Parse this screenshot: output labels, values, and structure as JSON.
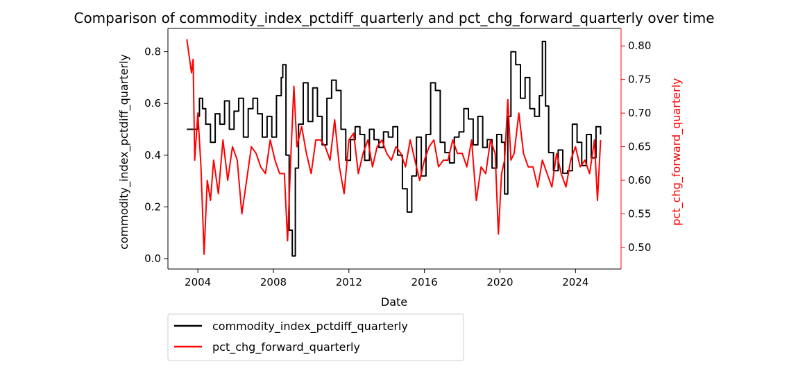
{
  "chart_data": {
    "type": "line",
    "title": "Comparison of commodity_index_pctdiff_quarterly and pct_chg_forward_quarterly over time",
    "xlabel": "Date",
    "ylabel_left": "commodity_index_pctdiff_quarterly",
    "ylabel_right": "pct_chg_forward_quarterly",
    "x_ticks": [
      "2004",
      "2008",
      "2012",
      "2016",
      "2020",
      "2024"
    ],
    "xlim": [
      "2002-06-01",
      "2026-06-01"
    ],
    "ylim_left": [
      -0.04,
      0.89
    ],
    "ylim_right": [
      0.468,
      0.826
    ],
    "yticks_left": [
      "0.0",
      "0.2",
      "0.4",
      "0.6",
      "0.8"
    ],
    "yticks_right": [
      "0.50",
      "0.55",
      "0.60",
      "0.65",
      "0.70",
      "0.75",
      "0.80"
    ],
    "grid": false,
    "legend_position": "below-left",
    "series": [
      {
        "name": "commodity_index_pctdiff_quarterly",
        "color": "#000000",
        "axis": "left",
        "x": [
          "2003-06-01",
          "2003-12-01",
          "2004-01-01",
          "2004-02-01",
          "2004-04-01",
          "2004-06-01",
          "2004-09-01",
          "2004-12-01",
          "2005-03-01",
          "2005-06-01",
          "2005-09-01",
          "2005-12-01",
          "2006-03-01",
          "2006-06-01",
          "2006-09-01",
          "2006-12-01",
          "2007-03-01",
          "2007-06-01",
          "2007-09-01",
          "2007-12-01",
          "2008-03-01",
          "2008-06-01",
          "2008-07-01",
          "2008-09-01",
          "2008-11-01",
          "2009-01-01",
          "2009-03-01",
          "2009-05-01",
          "2009-08-01",
          "2009-11-01",
          "2010-02-01",
          "2010-05-01",
          "2010-08-01",
          "2010-11-01",
          "2011-02-01",
          "2011-05-01",
          "2011-08-01",
          "2011-11-01",
          "2012-02-01",
          "2012-05-01",
          "2012-08-01",
          "2012-11-01",
          "2013-02-01",
          "2013-05-01",
          "2013-08-01",
          "2013-11-01",
          "2014-02-01",
          "2014-05-01",
          "2014-08-01",
          "2014-11-01",
          "2015-02-01",
          "2015-05-01",
          "2015-08-01",
          "2015-11-01",
          "2016-02-01",
          "2016-05-01",
          "2016-08-01",
          "2016-11-01",
          "2017-02-01",
          "2017-05-01",
          "2017-08-01",
          "2017-11-01",
          "2018-02-01",
          "2018-05-01",
          "2018-08-01",
          "2018-11-01",
          "2019-02-01",
          "2019-05-01",
          "2019-08-01",
          "2019-11-01",
          "2020-02-01",
          "2020-04-01",
          "2020-06-01",
          "2020-08-01",
          "2020-11-01",
          "2021-02-01",
          "2021-05-01",
          "2021-08-01",
          "2021-11-01",
          "2022-02-01",
          "2022-04-01",
          "2022-06-01",
          "2022-08-01",
          "2022-11-01",
          "2023-02-01",
          "2023-05-01",
          "2023-08-01",
          "2023-11-01",
          "2024-02-01",
          "2024-05-01",
          "2024-08-01",
          "2024-11-01",
          "2025-02-01",
          "2025-05-01"
        ],
        "values": [
          0.5,
          0.5,
          0.55,
          0.62,
          0.58,
          0.52,
          0.45,
          0.56,
          0.52,
          0.61,
          0.5,
          0.57,
          0.62,
          0.47,
          0.58,
          0.62,
          0.56,
          0.47,
          0.55,
          0.47,
          0.63,
          0.7,
          0.75,
          0.4,
          0.11,
          0.01,
          0.35,
          0.52,
          0.68,
          0.53,
          0.66,
          0.55,
          0.44,
          0.62,
          0.69,
          0.65,
          0.5,
          0.38,
          0.46,
          0.51,
          0.48,
          0.38,
          0.5,
          0.46,
          0.43,
          0.49,
          0.47,
          0.51,
          0.4,
          0.27,
          0.18,
          0.32,
          0.47,
          0.32,
          0.48,
          0.68,
          0.65,
          0.45,
          0.41,
          0.37,
          0.47,
          0.49,
          0.58,
          0.54,
          0.44,
          0.55,
          0.43,
          0.46,
          0.35,
          0.48,
          0.45,
          0.25,
          0.55,
          0.8,
          0.75,
          0.62,
          0.7,
          0.58,
          0.55,
          0.63,
          0.84,
          0.59,
          0.41,
          0.34,
          0.42,
          0.33,
          0.34,
          0.52,
          0.45,
          0.36,
          0.48,
          0.39,
          0.51,
          0.48
        ]
      },
      {
        "name": "pct_chg_forward_quarterly",
        "color": "#ff0000",
        "axis": "right",
        "x": [
          "2003-06-01",
          "2003-09-01",
          "2003-10-01",
          "2003-11-01",
          "2004-01-01",
          "2004-03-01",
          "2004-05-01",
          "2004-07-01",
          "2004-09-01",
          "2004-11-01",
          "2005-02-01",
          "2005-05-01",
          "2005-08-01",
          "2005-11-01",
          "2006-02-01",
          "2006-05-01",
          "2006-08-01",
          "2006-11-01",
          "2007-02-01",
          "2007-05-01",
          "2007-08-01",
          "2007-11-01",
          "2008-02-01",
          "2008-05-01",
          "2008-08-01",
          "2008-10-01",
          "2008-12-01",
          "2009-02-01",
          "2009-04-01",
          "2009-07-01",
          "2009-10-01",
          "2010-01-01",
          "2010-04-01",
          "2010-07-01",
          "2010-10-01",
          "2011-01-01",
          "2011-04-01",
          "2011-07-01",
          "2011-10-01",
          "2012-01-01",
          "2012-04-01",
          "2012-07-01",
          "2012-10-01",
          "2013-01-01",
          "2013-04-01",
          "2013-07-01",
          "2013-10-01",
          "2014-01-01",
          "2014-04-01",
          "2014-07-01",
          "2014-10-01",
          "2015-01-01",
          "2015-04-01",
          "2015-07-01",
          "2015-10-01",
          "2016-01-01",
          "2016-04-01",
          "2016-07-01",
          "2016-10-01",
          "2017-01-01",
          "2017-04-01",
          "2017-07-01",
          "2017-10-01",
          "2018-01-01",
          "2018-04-01",
          "2018-07-01",
          "2018-10-01",
          "2019-01-01",
          "2019-04-01",
          "2019-07-01",
          "2019-10-01",
          "2019-12-01",
          "2020-02-01",
          "2020-04-01",
          "2020-06-01",
          "2020-08-01",
          "2020-10-01",
          "2021-01-01",
          "2021-04-01",
          "2021-07-01",
          "2021-10-01",
          "2022-01-01",
          "2022-04-01",
          "2022-07-01",
          "2022-10-01",
          "2023-01-01",
          "2023-04-01",
          "2023-07-01",
          "2023-10-01",
          "2024-01-01",
          "2024-04-01",
          "2024-07-01",
          "2024-10-01",
          "2025-01-01",
          "2025-03-01",
          "2025-05-01"
        ],
        "values": [
          0.81,
          0.76,
          0.78,
          0.63,
          0.7,
          0.62,
          0.49,
          0.6,
          0.57,
          0.63,
          0.58,
          0.66,
          0.6,
          0.65,
          0.63,
          0.55,
          0.6,
          0.65,
          0.64,
          0.62,
          0.61,
          0.66,
          0.63,
          0.61,
          0.61,
          0.51,
          0.63,
          0.74,
          0.65,
          0.68,
          0.64,
          0.61,
          0.66,
          0.66,
          0.65,
          0.63,
          0.69,
          0.62,
          0.58,
          0.66,
          0.67,
          0.61,
          0.64,
          0.66,
          0.62,
          0.65,
          0.66,
          0.64,
          0.63,
          0.65,
          0.64,
          0.62,
          0.66,
          0.63,
          0.6,
          0.63,
          0.65,
          0.66,
          0.62,
          0.63,
          0.63,
          0.66,
          0.64,
          0.64,
          0.62,
          0.66,
          0.57,
          0.62,
          0.61,
          0.66,
          0.64,
          0.52,
          0.61,
          0.63,
          0.72,
          0.63,
          0.64,
          0.7,
          0.64,
          0.62,
          0.62,
          0.59,
          0.63,
          0.61,
          0.59,
          0.64,
          0.61,
          0.59,
          0.63,
          0.65,
          0.62,
          0.63,
          0.61,
          0.66,
          0.57,
          0.66
        ]
      }
    ]
  }
}
